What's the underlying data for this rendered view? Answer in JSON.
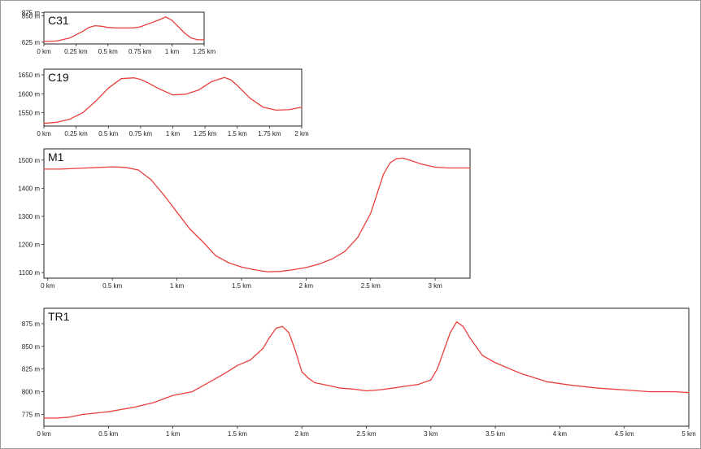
{
  "chart_data": [
    {
      "type": "line",
      "title": "C31",
      "x_unit": "km",
      "y_unit": "m",
      "xlim": [
        0,
        1.25
      ],
      "ylim": [
        610,
        880
      ],
      "x_ticks": [
        0,
        0.25,
        0.5,
        0.75,
        1,
        1.25
      ],
      "x_tick_labels": [
        "0 km",
        "0.25 km",
        "0.5 km",
        "0.75 km",
        "1 km",
        "1.25 km"
      ],
      "y_ticks": [
        875,
        850,
        625
      ],
      "y_tick_labels": [
        "875 m",
        "850 m",
        "625 m"
      ],
      "grid": false,
      "series": [
        {
          "x": [
            0,
            0.1,
            0.2,
            0.3,
            0.35,
            0.4,
            0.45,
            0.5,
            0.55,
            0.6,
            0.65,
            0.7,
            0.75,
            0.8,
            0.85,
            0.9,
            0.95,
            1.0,
            1.05,
            1.1,
            1.15,
            1.2,
            1.25
          ],
          "values": [
            630,
            635,
            660,
            715,
            750,
            765,
            760,
            750,
            747,
            746,
            746,
            747,
            755,
            775,
            795,
            815,
            840,
            810,
            755,
            700,
            660,
            645,
            645
          ]
        }
      ]
    },
    {
      "type": "line",
      "title": "C19",
      "x_unit": "km",
      "y_unit": "m",
      "xlim": [
        0,
        2
      ],
      "ylim": [
        1515,
        1665
      ],
      "x_ticks": [
        0,
        0.25,
        0.5,
        0.75,
        1,
        1.25,
        1.5,
        1.75,
        2
      ],
      "x_tick_labels": [
        "0 km",
        "0.25 km",
        "0.5 km",
        "0.75 km",
        "1 km",
        "1.25 km",
        "1.5 km",
        "1.75 km",
        "2 km"
      ],
      "y_ticks": [
        1650,
        1600,
        1550
      ],
      "y_tick_labels": [
        "1650 m",
        "1600 m",
        "1550 m"
      ],
      "grid": false,
      "series": [
        {
          "x": [
            0,
            0.1,
            0.2,
            0.3,
            0.4,
            0.5,
            0.6,
            0.7,
            0.75,
            0.8,
            0.9,
            1.0,
            1.1,
            1.2,
            1.3,
            1.4,
            1.45,
            1.5,
            1.6,
            1.7,
            1.8,
            1.9,
            2.0
          ],
          "values": [
            1522,
            1525,
            1533,
            1550,
            1580,
            1615,
            1640,
            1642,
            1638,
            1630,
            1612,
            1597,
            1599,
            1610,
            1632,
            1643,
            1637,
            1622,
            1588,
            1565,
            1557,
            1558,
            1565
          ]
        }
      ]
    },
    {
      "type": "line",
      "title": "M1",
      "x_unit": "km",
      "y_unit": "m",
      "xlim": [
        -0.03,
        3.27
      ],
      "ylim": [
        1080,
        1540
      ],
      "x_ticks": [
        0,
        0.5,
        1,
        1.5,
        2,
        2.5,
        3
      ],
      "x_tick_labels": [
        "0 km",
        "0.5 km",
        "1 km",
        "1.5 km",
        "2 km",
        "2.5 km",
        "3 km"
      ],
      "y_ticks": [
        1500,
        1400,
        1300,
        1200,
        1100
      ],
      "y_tick_labels": [
        "1500 m",
        "1400 m",
        "1300 m",
        "1200 m",
        "1100 m"
      ],
      "grid": false,
      "series": [
        {
          "x": [
            -0.03,
            0.1,
            0.3,
            0.5,
            0.6,
            0.7,
            0.8,
            0.9,
            1.0,
            1.1,
            1.2,
            1.3,
            1.4,
            1.5,
            1.6,
            1.7,
            1.8,
            1.9,
            2.0,
            2.1,
            2.2,
            2.3,
            2.4,
            2.5,
            2.55,
            2.6,
            2.65,
            2.7,
            2.75,
            2.8,
            2.9,
            3.0,
            3.1,
            3.27
          ],
          "values": [
            1468,
            1468,
            1472,
            1476,
            1474,
            1465,
            1430,
            1375,
            1315,
            1255,
            1210,
            1160,
            1135,
            1120,
            1110,
            1103,
            1104,
            1110,
            1118,
            1130,
            1148,
            1175,
            1225,
            1310,
            1380,
            1450,
            1490,
            1505,
            1507,
            1500,
            1485,
            1475,
            1472,
            1472
          ]
        }
      ]
    },
    {
      "type": "line",
      "title": "TR1",
      "x_unit": "km",
      "y_unit": "m",
      "xlim": [
        0,
        5
      ],
      "ylim": [
        762,
        892
      ],
      "x_ticks": [
        0,
        0.5,
        1,
        1.5,
        2,
        2.5,
        3,
        3.5,
        4,
        4.5,
        5
      ],
      "x_tick_labels": [
        "0 km",
        "0.5 km",
        "1 km",
        "1.5 km",
        "2 km",
        "2.5 km",
        "3 km",
        "3.5 km",
        "4 km",
        "4.5 km",
        "5 km"
      ],
      "y_ticks": [
        875,
        850,
        825,
        800,
        775
      ],
      "y_tick_labels": [
        "875 m",
        "850 m",
        "825 m",
        "800 m",
        "775 m"
      ],
      "grid": false,
      "series": [
        {
          "x": [
            0,
            0.1,
            0.2,
            0.3,
            0.5,
            0.7,
            0.85,
            1.0,
            1.15,
            1.3,
            1.4,
            1.5,
            1.6,
            1.7,
            1.75,
            1.8,
            1.85,
            1.9,
            1.95,
            2.0,
            2.05,
            2.1,
            2.2,
            2.3,
            2.4,
            2.5,
            2.6,
            2.7,
            2.8,
            2.9,
            3.0,
            3.05,
            3.1,
            3.15,
            3.2,
            3.25,
            3.3,
            3.4,
            3.5,
            3.7,
            3.9,
            4.1,
            4.3,
            4.5,
            4.7,
            4.9,
            5.0
          ],
          "values": [
            771,
            771,
            772,
            775,
            778,
            783,
            788,
            796,
            800,
            812,
            820,
            829,
            835,
            848,
            860,
            870,
            872,
            865,
            845,
            822,
            815,
            810,
            807,
            804,
            803,
            801,
            802,
            804,
            806,
            808,
            813,
            825,
            845,
            865,
            877,
            872,
            860,
            840,
            832,
            820,
            811,
            807,
            804,
            802,
            800,
            800,
            799
          ]
        }
      ]
    }
  ]
}
